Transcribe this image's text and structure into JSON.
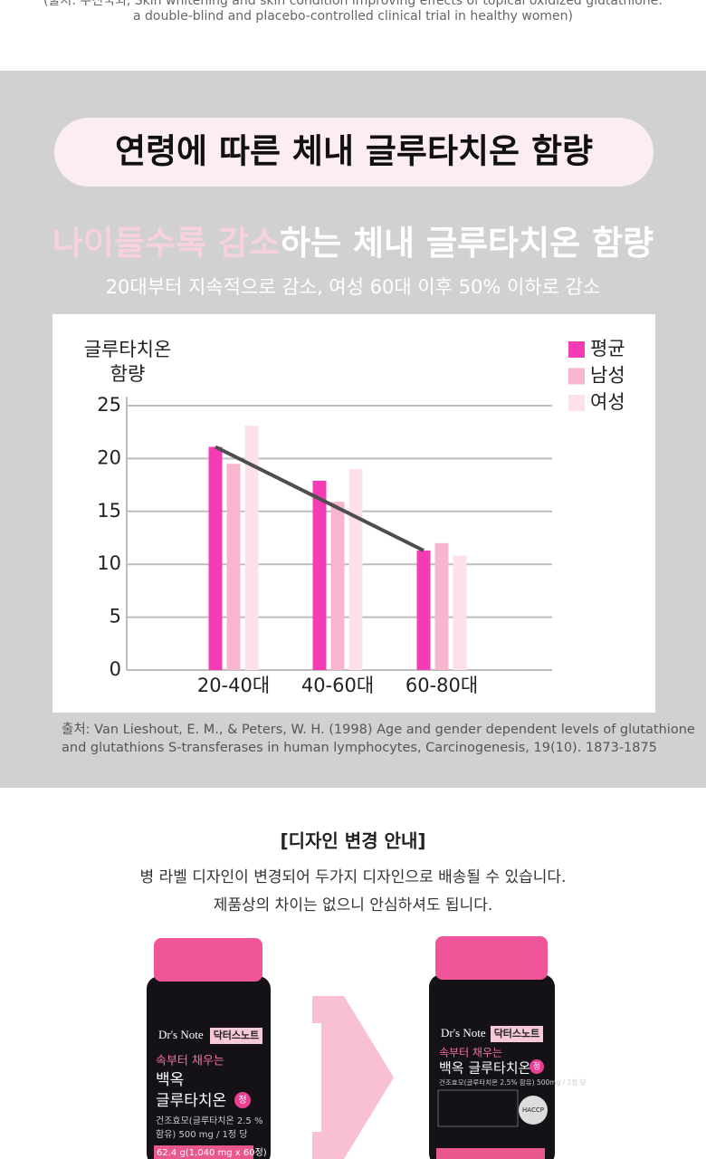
{
  "top_citation": {
    "line1": "(출처: 우진국외, Skin whitening and skin condition improving effects of topical oxidized glutathione:",
    "line2": "a double-blind and placebo-controlled clinical trial in healthy women)"
  },
  "section_title": "연령에 따른 체내 글루타치온 함량",
  "headline": {
    "highlight": "나이들수록 감소",
    "rest": "하는 체내 글루타치온 함량"
  },
  "subheadline": "20대부터 지속적으로 감소, 여성 60대 이후 50% 이하로 감소",
  "chart_data": {
    "type": "bar",
    "y_label": [
      "글루타치온",
      "함량"
    ],
    "categories": [
      "20-40대",
      "40-60대",
      "60-80대"
    ],
    "series": [
      {
        "name": "평균",
        "color": "#f53cb5",
        "values": [
          21.1,
          17.9,
          11.3
        ]
      },
      {
        "name": "남성",
        "color": "#f8b5cf",
        "values": [
          19.5,
          15.9,
          12.0
        ]
      },
      {
        "name": "여성",
        "color": "#fde0e9",
        "values": [
          23.1,
          19.0,
          10.8
        ]
      }
    ],
    "trend_line": {
      "color": "#4d4d52"
    },
    "ylim": [
      0,
      25
    ],
    "yticks": [
      0,
      5,
      10,
      15,
      20,
      25
    ],
    "grid": true,
    "legend": "top-right"
  },
  "source": {
    "line1": "출처: Van Lieshout, E. M., & Peters, W. H. (1998) Age and gender dependent levels of glutathione",
    "line2": "and glutathions S-transferases in human lymphocytes, Carcinogenesis, 19(10). 1873-1875"
  },
  "notice": {
    "title": "[디자인 변경 안내]",
    "line1": "병 라벨 디자인이 변경되어 두가지 디자인으로 배송될 수 있습니다.",
    "line2": "제품상의 차이는 없으니 안심하셔도 됩니다."
  },
  "bottles": [
    {
      "brand": "Dr's Note",
      "brand_kr": "닥터스노트",
      "tagline": "속부터 채우는",
      "name1": "백옥",
      "name2": "글루타치온",
      "badge": "정",
      "spec1": "건조효모(글루타치온 2.5 %",
      "spec2": "함유) 500 mg / 1정 당",
      "weight": "62.4 g(1,040 mg x 60정)"
    },
    {
      "brand": "Dr's Note",
      "brand_kr": "닥터스노트",
      "tagline": "속부터 채우는",
      "name1": "백옥 글루타치온",
      "badge": "정",
      "spec1": "건조효모(글루타치온 2.5% 함유) 500mg / 1정 당",
      "mark": "HACCP"
    }
  ]
}
